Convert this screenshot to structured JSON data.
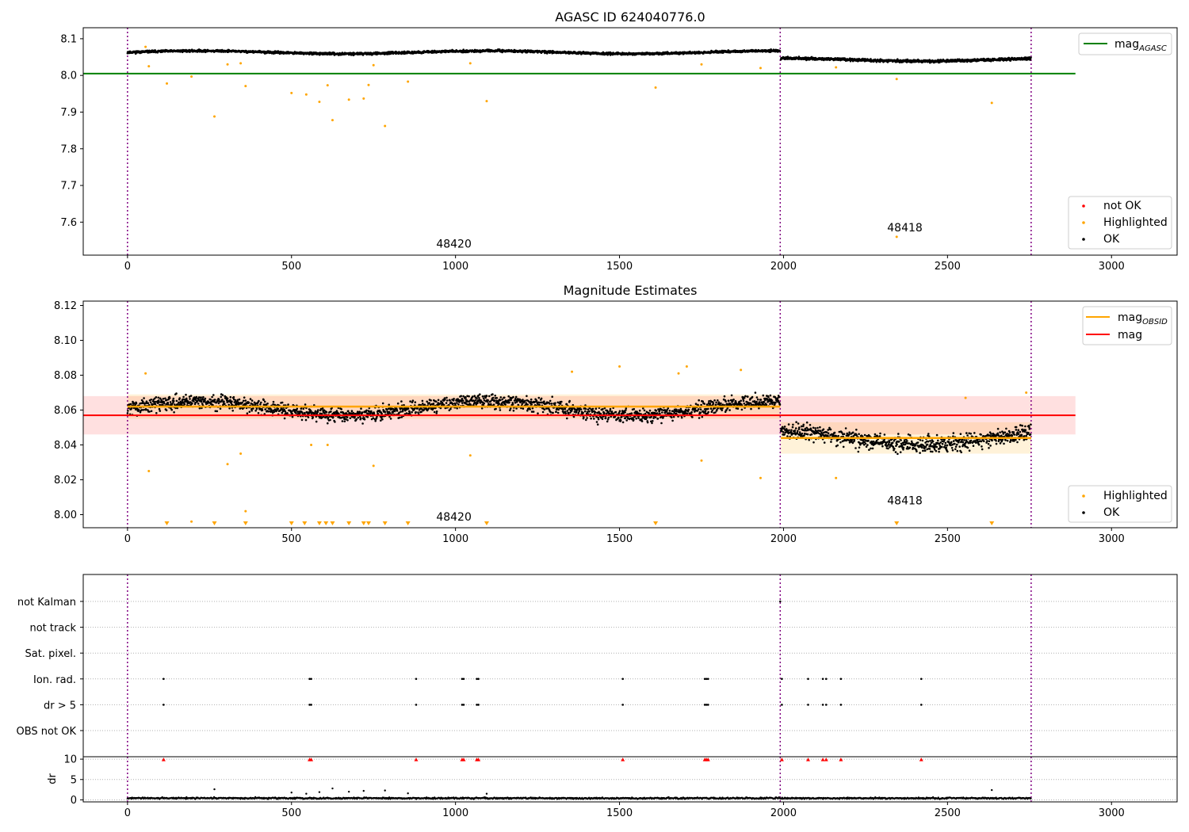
{
  "chart_data": [
    {
      "panel": "agasc",
      "type": "scatter",
      "title": "AGASC ID 624040776.0",
      "xlim": [
        -135,
        3200
      ],
      "ylim": [
        7.51,
        8.13
      ],
      "xticks": [
        0,
        500,
        1000,
        1500,
        2000,
        2500,
        3000
      ],
      "yticks": [
        7.6,
        7.7,
        7.8,
        7.9,
        8.0,
        8.1
      ],
      "ytick_labels": [
        "7.6",
        "7.7",
        "7.8",
        "7.9",
        "8.0",
        "8.1"
      ],
      "vlines": [
        0,
        1990,
        2755
      ],
      "hline": {
        "y": 8.005,
        "x_range": [
          -135,
          2890
        ],
        "color": "#008000"
      },
      "annotations": [
        {
          "text": "48420",
          "x": 995,
          "y": 7.53
        },
        {
          "text": "48418",
          "x": 2370,
          "y": 7.575
        }
      ],
      "segments": [
        {
          "x_start": 0,
          "x_end": 1990,
          "y_base": 8.063,
          "spread": 0.005
        },
        {
          "x_start": 1992,
          "x_end": 2755,
          "y_base": 8.043,
          "spread": 0.006
        }
      ],
      "highlighted_points": [
        [
          55,
          8.078
        ],
        [
          65,
          8.025
        ],
        [
          120,
          7.978
        ],
        [
          195,
          7.997
        ],
        [
          265,
          7.888
        ],
        [
          305,
          8.03
        ],
        [
          345,
          8.033
        ],
        [
          360,
          7.971
        ],
        [
          500,
          7.952
        ],
        [
          545,
          7.948
        ],
        [
          585,
          7.928
        ],
        [
          610,
          7.973
        ],
        [
          625,
          7.878
        ],
        [
          675,
          7.934
        ],
        [
          720,
          7.937
        ],
        [
          735,
          7.974
        ],
        [
          750,
          8.028
        ],
        [
          785,
          7.862
        ],
        [
          855,
          7.983
        ],
        [
          1045,
          8.033
        ],
        [
          1095,
          7.93
        ],
        [
          1610,
          7.967
        ],
        [
          1750,
          8.03
        ],
        [
          1930,
          8.02
        ],
        [
          2160,
          8.022
        ],
        [
          2345,
          7.99
        ],
        [
          2345,
          7.56
        ],
        [
          2635,
          7.925
        ]
      ],
      "legend": [
        {
          "label": "mag",
          "sub": "AGASC",
          "kind": "line",
          "color": "#008000"
        },
        {
          "label": "not OK",
          "kind": "dot",
          "color": "#ff0000"
        },
        {
          "label": "Highlighted",
          "kind": "dot",
          "color": "#ffa500"
        },
        {
          "label": "OK",
          "kind": "dot",
          "color": "#000000"
        }
      ]
    },
    {
      "panel": "estimates",
      "type": "scatter",
      "title": "Magnitude Estimates",
      "xlim": [
        -135,
        3200
      ],
      "ylim": [
        7.9925,
        8.1225
      ],
      "xticks": [
        0,
        500,
        1000,
        1500,
        2000,
        2500,
        3000
      ],
      "yticks": [
        8.0,
        8.02,
        8.04,
        8.06,
        8.08,
        8.1,
        8.12
      ],
      "ytick_labels": [
        "8.00",
        "8.02",
        "8.04",
        "8.06",
        "8.08",
        "8.10",
        "8.12"
      ],
      "vlines": [
        0,
        1990,
        2755
      ],
      "mag": {
        "y": 8.057,
        "band": [
          8.046,
          8.068
        ],
        "x_range": [
          -135,
          2890
        ],
        "color": "#ff0000"
      },
      "mag_obsid": [
        {
          "x_range": [
            0,
            1990
          ],
          "y": 8.062,
          "band": [
            8.055,
            8.069
          ]
        },
        {
          "x_range": [
            1992,
            2755
          ],
          "y": 8.044,
          "band": [
            8.035,
            8.053
          ]
        }
      ],
      "annotations": [
        {
          "text": "48420",
          "x": 995,
          "y": 7.9965
        },
        {
          "text": "48418",
          "x": 2370,
          "y": 8.006
        }
      ],
      "segments": [
        {
          "x_start": 0,
          "x_end": 1990,
          "y_base": 8.061,
          "spread": 0.007
        },
        {
          "x_start": 1992,
          "x_end": 2755,
          "y_base": 8.044,
          "spread": 0.008
        }
      ],
      "highlighted_points": [
        [
          55,
          8.081
        ],
        [
          65,
          8.025
        ],
        [
          195,
          7.996
        ],
        [
          305,
          8.029
        ],
        [
          345,
          8.035
        ],
        [
          360,
          8.002
        ],
        [
          560,
          8.04
        ],
        [
          610,
          8.04
        ],
        [
          1045,
          8.034
        ],
        [
          750,
          8.028
        ],
        [
          1355,
          8.082
        ],
        [
          1500,
          8.085
        ],
        [
          1680,
          8.081
        ],
        [
          1705,
          8.085
        ],
        [
          1750,
          8.031
        ],
        [
          1870,
          8.083
        ],
        [
          1930,
          8.021
        ],
        [
          2160,
          8.021
        ],
        [
          2555,
          8.067
        ],
        [
          2740,
          8.07
        ]
      ],
      "offscale_markers": [
        120,
        265,
        360,
        500,
        540,
        585,
        605,
        625,
        675,
        720,
        735,
        785,
        855,
        1095,
        1610,
        2345,
        2635
      ],
      "legend_top": [
        {
          "label": "mag",
          "sub": "OBSID",
          "kind": "line",
          "color": "#ffa500"
        },
        {
          "label": "mag",
          "kind": "line",
          "color": "#ff0000"
        }
      ],
      "legend_bottom": [
        {
          "label": "Highlighted",
          "kind": "dot",
          "color": "#ffa500"
        },
        {
          "label": "OK",
          "kind": "dot",
          "color": "#000000"
        }
      ]
    },
    {
      "panel": "flags",
      "type": "scatter",
      "xlim": [
        -135,
        3200
      ],
      "categories": [
        "not Kalman",
        "not track",
        "Sat. pixel.",
        "Ion. rad.",
        "dr > 5",
        "OBS not OK"
      ],
      "vlines": [
        0,
        1990,
        2755
      ],
      "flag_times": [
        110,
        555,
        560,
        880,
        1020,
        1025,
        1065,
        1070,
        1510,
        1760,
        1765,
        1770,
        1995,
        2075,
        2120,
        2130,
        2175,
        2420
      ],
      "flag_rows": [
        "Ion. rad.",
        "dr > 5"
      ],
      "not_kalman_times": [
        1990
      ]
    },
    {
      "panel": "dr",
      "type": "scatter",
      "xlim": [
        -135,
        3200
      ],
      "ylim": [
        -0.5,
        10.6
      ],
      "ylabel": "dr",
      "yticks": [
        0,
        5,
        10
      ],
      "ytick_labels": [
        "0",
        "5",
        "10"
      ],
      "xticks": [
        0,
        500,
        1000,
        1500,
        2000,
        2500,
        3000
      ],
      "vlines": [
        0,
        1990,
        2755
      ],
      "baseline": {
        "y": 0.4,
        "spread": 0.3
      },
      "outliers": [
        [
          265,
          2.6
        ],
        [
          500,
          1.8
        ],
        [
          545,
          1.5
        ],
        [
          585,
          1.9
        ],
        [
          625,
          2.8
        ],
        [
          675,
          2.0
        ],
        [
          720,
          2.2
        ],
        [
          785,
          2.3
        ],
        [
          855,
          1.6
        ],
        [
          1095,
          1.5
        ],
        [
          2635,
          2.4
        ]
      ],
      "red_markers": [
        110,
        555,
        560,
        880,
        1020,
        1025,
        1065,
        1070,
        1510,
        1760,
        1765,
        1770,
        1995,
        2075,
        2120,
        2130,
        2175,
        2420
      ]
    }
  ]
}
